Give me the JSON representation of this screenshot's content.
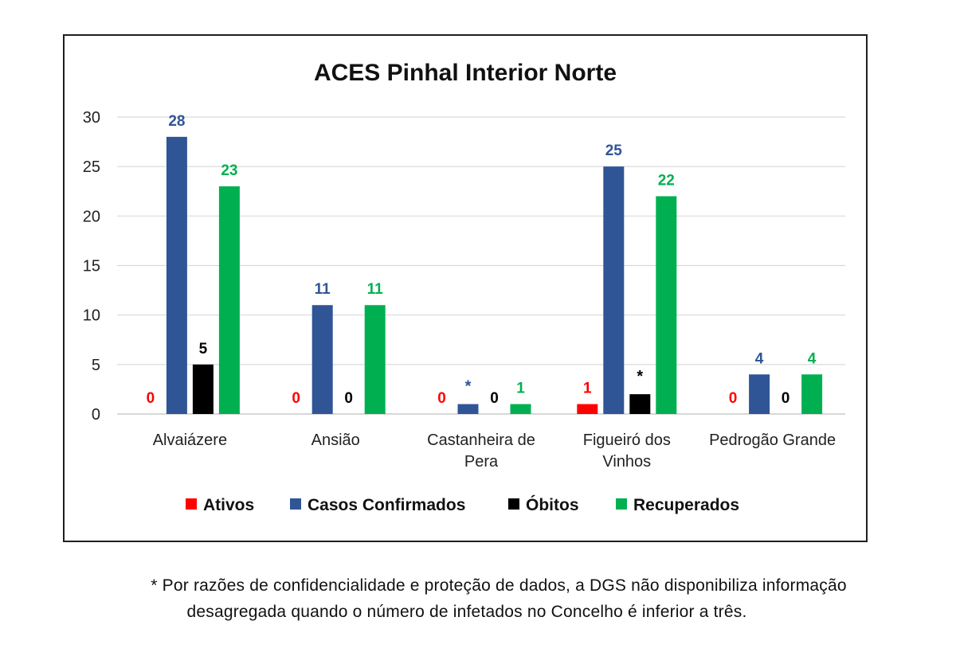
{
  "chart_data": {
    "type": "bar",
    "title": "ACES Pinhal Interior Norte",
    "xlabel": "",
    "ylabel": "",
    "ylim": [
      0,
      30
    ],
    "yticks": [
      0,
      5,
      10,
      15,
      20,
      25,
      30
    ],
    "grid": true,
    "legend_position": "bottom",
    "categories": [
      [
        "Alvaiázere"
      ],
      [
        "Ansião"
      ],
      [
        "Castanheira de",
        "Pera"
      ],
      [
        "Figueiró dos",
        "Vinhos"
      ],
      [
        "Pedrogão Grande"
      ]
    ],
    "series": [
      {
        "name": "Ativos",
        "color": "#ff0000",
        "values": [
          0,
          0,
          0,
          1,
          0
        ],
        "labels": [
          "0",
          "0",
          "0",
          "1",
          "0"
        ]
      },
      {
        "name": "Casos Confirmados",
        "color": "#2f5597",
        "values": [
          28,
          11,
          1,
          25,
          4
        ],
        "labels": [
          "28",
          "11",
          "*",
          "25",
          "4"
        ]
      },
      {
        "name": "Óbitos",
        "color": "#000000",
        "values": [
          5,
          0,
          0,
          2,
          0
        ],
        "labels": [
          "5",
          "0",
          "0",
          "*",
          "0"
        ]
      },
      {
        "name": "Recuperados",
        "color": "#00b050",
        "values": [
          23,
          11,
          1,
          22,
          4
        ],
        "labels": [
          "23",
          "11",
          "1",
          "22",
          "4"
        ]
      }
    ]
  },
  "footnote": {
    "line1": "* Por razões de confidencialidade e proteção de dados, a DGS não disponibiliza informação",
    "line2": "desagregada quando o número de infetados no Concelho é inferior a três."
  }
}
